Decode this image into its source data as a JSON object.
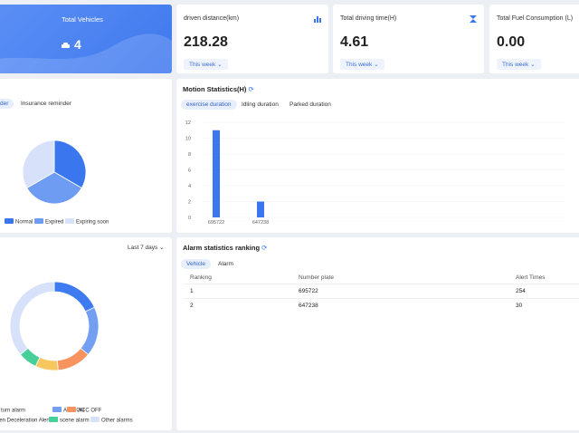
{
  "summary": [
    {
      "title": "Total Vehicles",
      "value": "4"
    },
    {
      "title": "driven distance(km)",
      "value": "218.28",
      "period": "This week"
    },
    {
      "title": "Total driving time(H)",
      "value": "4.61",
      "period": "This week"
    },
    {
      "title": "Total Fuel Consumption (L)",
      "value": "0.00",
      "period": "This week"
    }
  ],
  "reminder": {
    "tabs": [
      "der",
      "Insurance reminder"
    ],
    "chart": {
      "type": "pie",
      "categories": [
        "Normal",
        "Expired",
        "Expiring soon"
      ],
      "values": [
        1,
        1,
        1
      ],
      "colors": [
        "#3a76ee",
        "#6e9cf3",
        "#d7e2fa"
      ]
    }
  },
  "motion": {
    "title": "Motion Statistics(H)",
    "tabs": [
      "exercise duration",
      "Idling duration",
      "Parked duration"
    ],
    "chart": {
      "type": "bar",
      "categories": [
        "695722",
        "647238"
      ],
      "values": [
        11,
        2
      ],
      "color": "#3a76ee",
      "ylim": [
        0,
        12
      ],
      "yticks": [
        0,
        2,
        4,
        6,
        8,
        10,
        12
      ]
    }
  },
  "alarms": {
    "period": "Last 7 days",
    "chart": {
      "type": "donut",
      "categories": [
        "p turn alarm",
        "ACC ON",
        "ACC OFF",
        "den Deceleration Alert",
        "scene alarm",
        "Other alarms"
      ],
      "values": [
        65,
        65,
        45,
        30,
        25,
        130
      ],
      "colors": [
        "#3e7bf0",
        "#739ff2",
        "#f7935f",
        "#f6c75e",
        "#46cf98",
        "#d7e2fa"
      ]
    }
  },
  "ranking": {
    "title": "Alarm statistics ranking",
    "tabs": [
      "Vehicle",
      "Alarm"
    ],
    "table": {
      "columns": [
        "Ranking",
        "Number plate",
        "Alert Times"
      ],
      "rows": [
        [
          "1",
          "695722",
          "254"
        ],
        [
          "2",
          "647238",
          "30"
        ]
      ]
    }
  }
}
